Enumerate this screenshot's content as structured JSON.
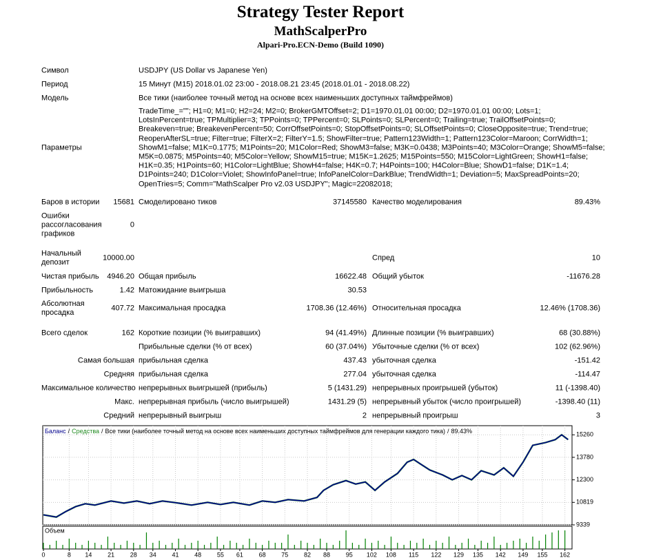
{
  "header": {
    "title": "Strategy Tester Report",
    "subtitle": "MathScalperPro",
    "server": "Alpari-Pro.ECN-Demo (Build 1090)"
  },
  "report": {
    "rows": [
      {
        "label": "Символ",
        "text": "USDJPY (US Dollar vs Japanese Yen)"
      },
      {
        "label": "Период",
        "text": "15 Минут (M15) 2018.01.02 23:00 - 2018.08.21 23:45 (2018.01.01 - 2018.08.22)"
      },
      {
        "label": "Модель",
        "text": "Все тики (наиболее точный метод на основе всех наименьших доступных таймфреймов)"
      },
      {
        "label": "Параметры",
        "lines": [
          "TradeTime_=\"\"; H1=0; M1=0; H2=24; M2=0; BrokerGMTOffset=2; D1=1970.01.01 00:00; D2=1970.01.01 00:00; Lots=1;",
          "LotsInPercent=true; TPMultiplier=3; TPPoints=0; TPPercent=0; SLPoints=0; SLPercent=0; Trailing=true; TrailOffsetPoints=0;",
          "Breakeven=true; BreakevenPercent=50; CorrOffsetPoints=0; StopOffsetPoints=0; SLOffsetPoints=0; CloseOpposite=true; Trend=true;",
          "ReopenAfterSL=true; Filter=true; FilterX=2; FilterY=1.5; ShowFilter=true; Pattern123Width=1; Pattern123Color=Maroon; CorrWidth=1;",
          "ShowM1=false; M1K=0.1775; M1Points=20; M1Color=Red; ShowM3=false; M3K=0.0438; M3Points=40; M3Color=Orange; ShowM5=false;",
          "M5K=0.0875; M5Points=40; M5Color=Yellow; ShowM15=true; M15K=1.2625; M15Points=550; M15Color=LightGreen; ShowH1=false;",
          "H1K=0.35; H1Points=60; H1Color=LightBlue; ShowH4=false; H4K=0.7; H4Points=100; H4Color=Blue; ShowD1=false; D1K=1.4;",
          "D1Points=240; D1Color=Violet; ShowInfoPanel=true; InfoPanelColor=DarkBlue; TrendWidth=1; Deviation=5; MaxSpreadPoints=20;",
          "OpenTries=5; Comm=\"MathScalper Pro v2.03 USDJPY\"; Magic=22082018;"
        ]
      },
      {
        "label": "Баров в истории",
        "value": "15681",
        "label2": "Смоделировано тиков",
        "value2": "37145580",
        "label3": "Качество моделирования",
        "value3": "89.43%"
      },
      {
        "label": "Ошибки рассогласования графиков",
        "value": "0"
      },
      {
        "label": "Начальный депозит",
        "value": "10000.00",
        "label3": "Спред",
        "value3": "10"
      },
      {
        "label": "Чистая прибыль",
        "value": "4946.20",
        "label2": "Общая прибыль",
        "value2": "16622.48",
        "label3": "Общий убыток",
        "value3": "-11676.28"
      },
      {
        "label": "Прибыльность",
        "value": "1.42",
        "label2": "Матожидание выигрыша",
        "value2": "30.53"
      },
      {
        "label": "Абсолютная просадка",
        "value": "407.72",
        "label2": "Максимальная просадка",
        "value2": "1708.36 (12.46%)",
        "label3": "Относительная просадка",
        "value3": "12.46% (1708.36)"
      },
      {
        "label": "Всего сделок",
        "value": "162",
        "label2": "Короткие позиции (% выигравших)",
        "value2": "94 (41.49%)",
        "label3": "Длинные позиции (% выигравших)",
        "value3": "68 (30.88%)"
      },
      {
        "label2": "Прибыльные сделки (% от всех)",
        "value2": "60 (37.04%)",
        "label3": "Убыточные сделки (% от всех)",
        "value3": "102 (62.96%)"
      },
      {
        "value": "Самая большая",
        "label2": "прибыльная сделка",
        "value2": "437.43",
        "label3": "убыточная сделка",
        "value3": "-151.42"
      },
      {
        "value": "Средняя",
        "label2": "прибыльная сделка",
        "value2": "277.04",
        "label3": "убыточная сделка",
        "value3": "-114.47"
      },
      {
        "value": "Максимальное количество",
        "label2": "непрерывных выигрышей (прибыль)",
        "value2": "5 (1431.29)",
        "label3": "непрерывных проигрышей (убыток)",
        "value3": "11 (-1398.40)"
      },
      {
        "value": "Макс.",
        "label2": "непрерывная прибыль (число выигрышей)",
        "value2": "1431.29 (5)",
        "label3": "непрерывный убыток (число проигрышей)",
        "value3": "-1398.40 (11)"
      },
      {
        "value": "Средний",
        "label2": "непрерывный выигрыш",
        "value2": "2",
        "label3": "непрерывный проигрыш",
        "value3": "3"
      }
    ]
  },
  "chart_data": {
    "type": "line",
    "title": "Все тики (наиболее точный метод на основе всех наименьших доступных таймфреймов для генерации каждого тика)",
    "quality": "89.43%",
    "separator": "/",
    "x": [
      0,
      4,
      7,
      10,
      13,
      16,
      21,
      25,
      29,
      33,
      37,
      42,
      46,
      51,
      55,
      59,
      64,
      68,
      72,
      76,
      81,
      85,
      87,
      90,
      94,
      97,
      100,
      103,
      106,
      110,
      113,
      115,
      117,
      120,
      124,
      127,
      130,
      133,
      136,
      140,
      143,
      146,
      149,
      152,
      156,
      159,
      161,
      163
    ],
    "series": [
      {
        "name": "Баланс",
        "color": "#00008b",
        "values": [
          10000,
          9850,
          10220,
          10540,
          10730,
          10640,
          10910,
          10770,
          10910,
          10730,
          10910,
          10770,
          10640,
          10820,
          10680,
          10820,
          10640,
          10910,
          10820,
          11000,
          10910,
          11140,
          11610,
          11980,
          12250,
          12020,
          12160,
          11610,
          12160,
          12720,
          13460,
          13640,
          13360,
          12950,
          12620,
          12300,
          12580,
          12300,
          12900,
          12620,
          13090,
          12530,
          13460,
          14570,
          14750,
          14940,
          15260,
          14946
        ]
      },
      {
        "name": "Средства",
        "color": "#228b22",
        "values": [
          10000,
          9850,
          10220,
          10540,
          10730,
          10640,
          10910,
          10770,
          10910,
          10730,
          10910,
          10770,
          10640,
          10820,
          10680,
          10820,
          10640,
          10910,
          10820,
          11000,
          10910,
          11140,
          11610,
          11980,
          12250,
          12020,
          12160,
          11610,
          12160,
          12720,
          13460,
          13640,
          13360,
          12950,
          12620,
          12300,
          12580,
          12300,
          12900,
          12620,
          13090,
          12530,
          13460,
          14570,
          14750,
          14940,
          15260,
          14946
        ]
      }
    ],
    "xlim": [
      0,
      164
    ],
    "ylim": [
      9339,
      15860
    ],
    "xticks": [
      0,
      8,
      14,
      21,
      28,
      34,
      41,
      48,
      55,
      61,
      68,
      75,
      82,
      88,
      95,
      102,
      108,
      115,
      122,
      129,
      135,
      142,
      149,
      155,
      162
    ],
    "yticks": [
      9339,
      10819,
      12300,
      13780,
      15260
    ],
    "grid": true,
    "volume": {
      "label": "Объем",
      "color": "#008000",
      "ylim": [
        0,
        10
      ],
      "x": [
        0,
        2,
        4,
        6,
        8,
        10,
        12,
        14,
        16,
        18,
        20,
        22,
        24,
        26,
        28,
        30,
        32,
        34,
        36,
        38,
        40,
        42,
        44,
        46,
        48,
        50,
        52,
        54,
        56,
        58,
        60,
        62,
        64,
        66,
        68,
        70,
        72,
        74,
        76,
        78,
        80,
        82,
        84,
        86,
        88,
        90,
        92,
        94,
        96,
        98,
        100,
        102,
        104,
        106,
        108,
        110,
        112,
        114,
        116,
        118,
        120,
        122,
        124,
        126,
        128,
        130,
        132,
        134,
        136,
        138,
        140,
        142,
        144,
        146,
        148,
        150,
        152,
        154,
        156,
        158,
        160,
        162
      ],
      "values": [
        3,
        2,
        4,
        2,
        5,
        3,
        2,
        4,
        3,
        2,
        6,
        3,
        2,
        4,
        3,
        2,
        8,
        3,
        4,
        2,
        3,
        5,
        2,
        3,
        4,
        2,
        3,
        6,
        2,
        4,
        3,
        2,
        5,
        3,
        2,
        4,
        3,
        3,
        7,
        2,
        4,
        3,
        2,
        5,
        3,
        2,
        4,
        9,
        3,
        2,
        5,
        3,
        4,
        2,
        6,
        3,
        2,
        4,
        3,
        5,
        2,
        4,
        3,
        6,
        2,
        3,
        5,
        2,
        4,
        3,
        6,
        2,
        3,
        4,
        5,
        3,
        6,
        4,
        7,
        8,
        9,
        9
      ]
    }
  }
}
